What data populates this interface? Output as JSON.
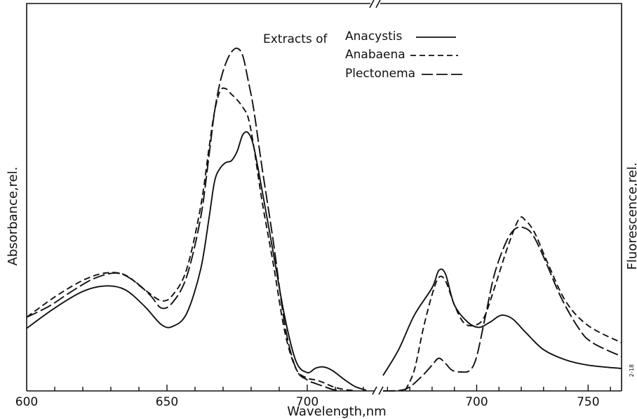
{
  "chart_data": {
    "type": "line",
    "title": "",
    "xlabel": "Wavelength,nm",
    "ylabel_left": "Absorbance,rel.",
    "ylabel_right": "Fluorescence,rel.",
    "corner_note": "2-18",
    "grid": false,
    "legend_placement": "top-center",
    "legend": {
      "heading": "Extracts of",
      "entries": [
        "Anacystis",
        "Anabaena",
        "Plectonema"
      ]
    },
    "colors": {
      "lines": "#111111",
      "background": "#ffffff"
    },
    "panels": [
      {
        "name": "absorbance",
        "xlim": [
          600,
          724
        ],
        "ylim": [
          0,
          1
        ],
        "ticks": [
          600,
          650,
          700
        ],
        "tick_labels": [
          "600",
          "650",
          "700"
        ]
      },
      {
        "name": "fluorescence",
        "xlim": [
          658,
          765
        ],
        "ylim": [
          0,
          1
        ],
        "ticks": [
          700,
          750
        ],
        "tick_labels": [
          "700",
          "750"
        ]
      }
    ],
    "series": [
      {
        "name": "Anacystis",
        "dash": "solid",
        "absorbance": [
          [
            600,
            0.17
          ],
          [
            610,
            0.225
          ],
          [
            620,
            0.27
          ],
          [
            628,
            0.285
          ],
          [
            635,
            0.275
          ],
          [
            642,
            0.23
          ],
          [
            648,
            0.18
          ],
          [
            652,
            0.175
          ],
          [
            657,
            0.21
          ],
          [
            662,
            0.33
          ],
          [
            665,
            0.47
          ],
          [
            667,
            0.57
          ],
          [
            669,
            0.605
          ],
          [
            671,
            0.62
          ],
          [
            673,
            0.625
          ],
          [
            675,
            0.65
          ],
          [
            677,
            0.695
          ],
          [
            679,
            0.7
          ],
          [
            681,
            0.66
          ],
          [
            684,
            0.54
          ],
          [
            688,
            0.37
          ],
          [
            692,
            0.2
          ],
          [
            696,
            0.08
          ],
          [
            700,
            0.05
          ],
          [
            703,
            0.062
          ],
          [
            706,
            0.065
          ],
          [
            709,
            0.055
          ],
          [
            713,
            0.032
          ],
          [
            717,
            0.012
          ],
          [
            721,
            0.002
          ]
        ],
        "fluorescence": [
          [
            658,
            0.045
          ],
          [
            665,
            0.12
          ],
          [
            672,
            0.22
          ],
          [
            680,
            0.3
          ],
          [
            683,
            0.35
          ],
          [
            686,
            0.34
          ],
          [
            690,
            0.25
          ],
          [
            696,
            0.2
          ],
          [
            701,
            0.185
          ],
          [
            706,
            0.2
          ],
          [
            711,
            0.22
          ],
          [
            716,
            0.21
          ],
          [
            722,
            0.17
          ],
          [
            730,
            0.12
          ],
          [
            740,
            0.09
          ],
          [
            750,
            0.075
          ],
          [
            765,
            0.065
          ]
        ]
      },
      {
        "name": "Anabaena",
        "dash": "dashed",
        "absorbance": [
          [
            600,
            0.2
          ],
          [
            610,
            0.255
          ],
          [
            620,
            0.3
          ],
          [
            628,
            0.32
          ],
          [
            635,
            0.315
          ],
          [
            642,
            0.275
          ],
          [
            648,
            0.245
          ],
          [
            652,
            0.26
          ],
          [
            657,
            0.33
          ],
          [
            662,
            0.5
          ],
          [
            665,
            0.66
          ],
          [
            667,
            0.76
          ],
          [
            669,
            0.815
          ],
          [
            671,
            0.82
          ],
          [
            673,
            0.805
          ],
          [
            675,
            0.79
          ],
          [
            677,
            0.77
          ],
          [
            679,
            0.74
          ],
          [
            681,
            0.66
          ],
          [
            684,
            0.51
          ],
          [
            688,
            0.34
          ],
          [
            692,
            0.16
          ],
          [
            696,
            0.06
          ],
          [
            700,
            0.035
          ],
          [
            703,
            0.03
          ],
          [
            706,
            0.022
          ],
          [
            709,
            0.012
          ],
          [
            713,
            0.004
          ],
          [
            717,
            0.001
          ]
        ],
        "fluorescence": [
          [
            668,
            0.002
          ],
          [
            672,
            0.06
          ],
          [
            676,
            0.18
          ],
          [
            680,
            0.28
          ],
          [
            683,
            0.33
          ],
          [
            686,
            0.32
          ],
          [
            690,
            0.25
          ],
          [
            694,
            0.2
          ],
          [
            698,
            0.19
          ],
          [
            703,
            0.21
          ],
          [
            708,
            0.3
          ],
          [
            714,
            0.42
          ],
          [
            719,
            0.5
          ],
          [
            722,
            0.495
          ],
          [
            726,
            0.46
          ],
          [
            732,
            0.37
          ],
          [
            740,
            0.26
          ],
          [
            750,
            0.19
          ],
          [
            765,
            0.14
          ]
        ]
      },
      {
        "name": "Plectonema",
        "dash": "long-dash",
        "absorbance": [
          [
            600,
            0.2
          ],
          [
            608,
            0.23
          ],
          [
            616,
            0.27
          ],
          [
            624,
            0.305
          ],
          [
            632,
            0.32
          ],
          [
            638,
            0.3
          ],
          [
            644,
            0.26
          ],
          [
            648,
            0.225
          ],
          [
            652,
            0.24
          ],
          [
            657,
            0.31
          ],
          [
            662,
            0.47
          ],
          [
            665,
            0.64
          ],
          [
            667,
            0.76
          ],
          [
            669,
            0.84
          ],
          [
            671,
            0.89
          ],
          [
            673,
            0.92
          ],
          [
            675,
            0.93
          ],
          [
            677,
            0.91
          ],
          [
            679,
            0.84
          ],
          [
            681,
            0.76
          ],
          [
            684,
            0.6
          ],
          [
            688,
            0.4
          ],
          [
            692,
            0.18
          ],
          [
            696,
            0.06
          ],
          [
            700,
            0.03
          ],
          [
            703,
            0.02
          ],
          [
            706,
            0.012
          ],
          [
            709,
            0.004
          ],
          [
            712,
            0.001
          ]
        ],
        "fluorescence": [
          [
            658,
            0.0
          ],
          [
            668,
            0.005
          ],
          [
            675,
            0.04
          ],
          [
            680,
            0.075
          ],
          [
            683,
            0.095
          ],
          [
            686,
            0.08
          ],
          [
            689,
            0.06
          ],
          [
            693,
            0.055
          ],
          [
            697,
            0.06
          ],
          [
            700,
            0.1
          ],
          [
            704,
            0.22
          ],
          [
            708,
            0.34
          ],
          [
            713,
            0.43
          ],
          [
            717,
            0.47
          ],
          [
            721,
            0.475
          ],
          [
            725,
            0.455
          ],
          [
            730,
            0.39
          ],
          [
            738,
            0.27
          ],
          [
            746,
            0.18
          ],
          [
            752,
            0.14
          ],
          [
            765,
            0.1
          ]
        ]
      }
    ]
  }
}
